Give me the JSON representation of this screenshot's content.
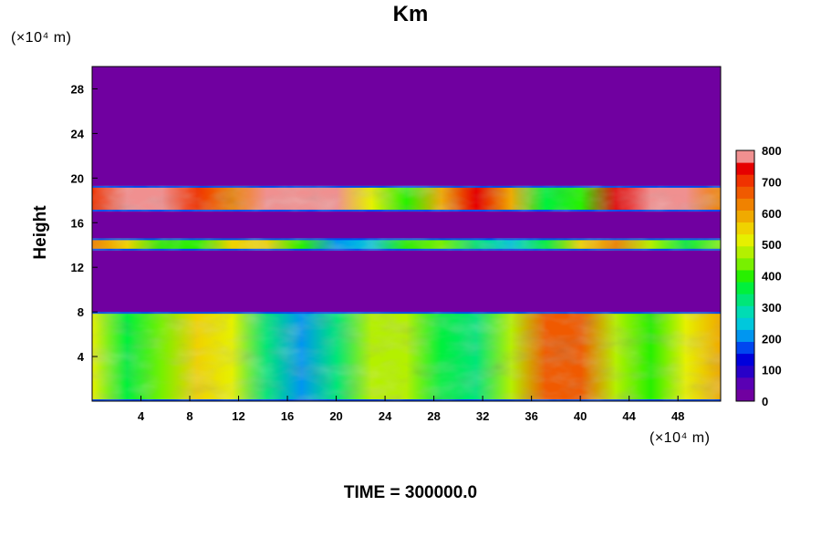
{
  "chart_data": {
    "type": "heatmap",
    "title": "Km",
    "ylabel": "Height",
    "x_unit": "(×10⁴ m)",
    "y_unit": "(×10⁴ m)",
    "xlim": [
      0,
      51.5
    ],
    "ylim": [
      0,
      30
    ],
    "x_ticks": [
      4,
      8,
      12,
      16,
      20,
      24,
      28,
      32,
      36,
      40,
      44,
      48
    ],
    "y_ticks": [
      4,
      8,
      12,
      16,
      20,
      24,
      28
    ],
    "colorbar": {
      "min": 0,
      "max": 800,
      "tick_labels": [
        0,
        100,
        200,
        300,
        400,
        500,
        600,
        700,
        800
      ],
      "colors": [
        "#7000a0",
        "#5a00b4",
        "#2800c8",
        "#0000dc",
        "#0046f0",
        "#0096f0",
        "#00c8dc",
        "#00dcb4",
        "#00e678",
        "#00f03c",
        "#28f000",
        "#78f000",
        "#b4f000",
        "#e6f000",
        "#f0d200",
        "#f0aa00",
        "#f08200",
        "#f05a00",
        "#f03200",
        "#e60000",
        "#f09090"
      ],
      "position": "right"
    },
    "grid": false,
    "bands": [
      {
        "from": 17,
        "to": 19.3,
        "value": 700
      },
      {
        "from": 13.5,
        "to": 14.6,
        "value": 420
      },
      {
        "from": 0,
        "to": 8,
        "value": 450
      }
    ]
  },
  "footer": {
    "time_label": "TIME = 300000.0"
  }
}
